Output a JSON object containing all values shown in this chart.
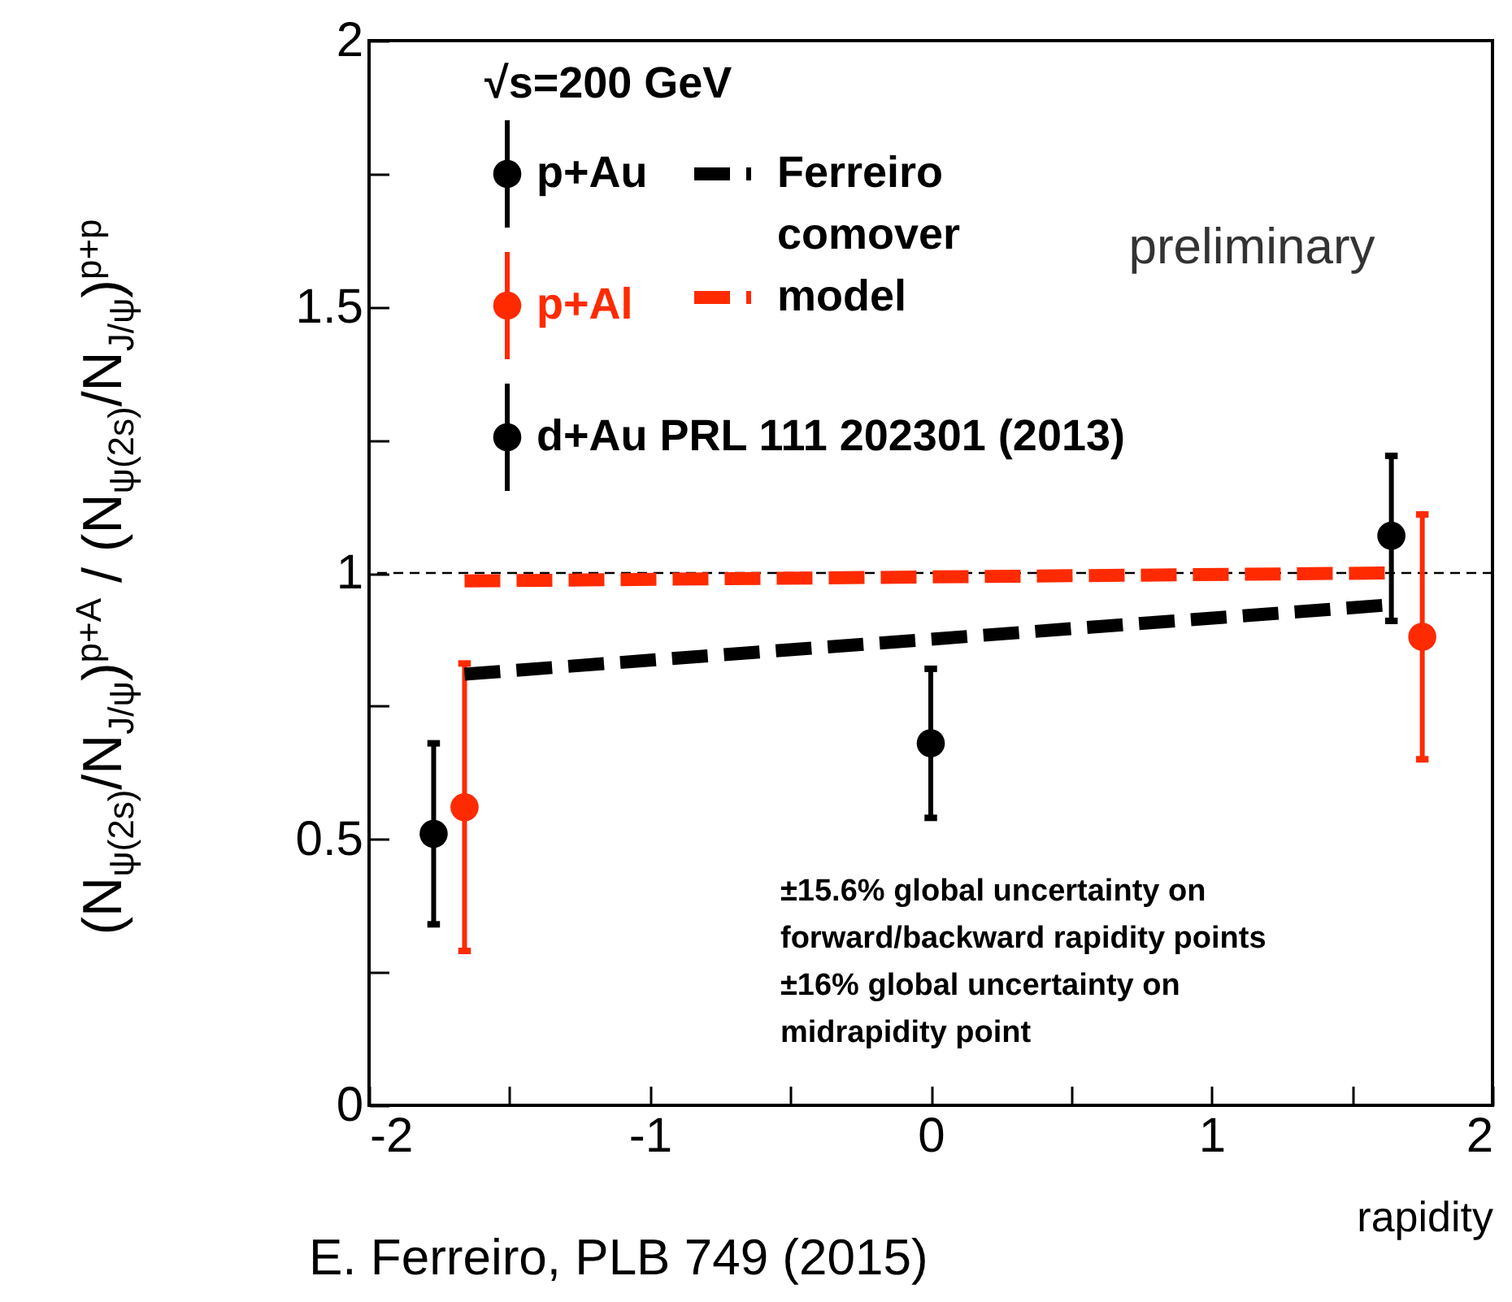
{
  "chart_data": {
    "type": "scatter",
    "xlabel": "rapidity",
    "ylabel": "(N$_{ψ(2s)}$/N$_{J/ψ}$)$^{p+A}$ / (N$_{ψ(2s)}$/N$_{J/ψ}$)$^{p+p}$",
    "annotations": [
      "√s=200 GeV",
      "preliminary",
      "±15.6% global uncertainty on\nforward/backward rapidity points\n±16% global uncertainty on\nmidrapidity point",
      "E. Ferreiro, PLB  749 (2015)"
    ],
    "xlim": [
      -2,
      2
    ],
    "xticks": [
      -2,
      {
        "value": -1.5,
        "label": null
      },
      -1,
      {
        "value": -0.5,
        "label": null
      },
      0,
      {
        "value": 0.5,
        "label": null
      },
      1,
      {
        "value": 1.5,
        "label": null
      },
      2
    ],
    "ylim": [
      0,
      2
    ],
    "yticks": [
      0,
      {
        "value": 0.25,
        "label": null
      },
      0.5,
      {
        "value": 0.75,
        "label": null
      },
      1,
      {
        "value": 1.25,
        "label": null
      },
      1.5,
      {
        "value": 1.75,
        "label": null
      },
      2
    ],
    "grid": false,
    "legend": "top left",
    "marker": "circle",
    "ref_lines": [
      {
        "axis": "y",
        "value": 1,
        "color": "#000000",
        "line_style": "dashed"
      }
    ],
    "series": [
      {
        "name": "p+Au",
        "color": "#000000",
        "x": [
          -1.77,
          1.64
        ],
        "values": [
          0.51,
          1.07
        ],
        "errors": [
          [
            0.34,
            0.68
          ],
          [
            0.91,
            1.22
          ]
        ]
      },
      {
        "name": "p+Al",
        "color": "#ff2a00",
        "x": [
          -1.66,
          1.75
        ],
        "values": [
          0.56,
          0.88
        ],
        "errors": [
          [
            0.29,
            0.83
          ],
          [
            0.65,
            1.11
          ]
        ]
      },
      {
        "name": "d+Au PRL 111 202301 (2013)",
        "color": "#000000",
        "x": [
          0
        ],
        "values": [
          0.68
        ],
        "errors": [
          [
            0.54,
            0.82
          ]
        ]
      },
      {
        "name": "Ferreiro comover model",
        "type": "line",
        "marker": "none",
        "color": "#000000",
        "line_style": "dashed",
        "x": [
          -1.66,
          1.63
        ],
        "values": [
          0.81,
          0.94
        ]
      },
      {
        "type": "line",
        "marker": "none",
        "color": "#ff2a00",
        "line_style": "dashed",
        "x": [
          -1.66,
          1.63
        ],
        "values": [
          0.985,
          1.0
        ]
      }
    ]
  }
}
